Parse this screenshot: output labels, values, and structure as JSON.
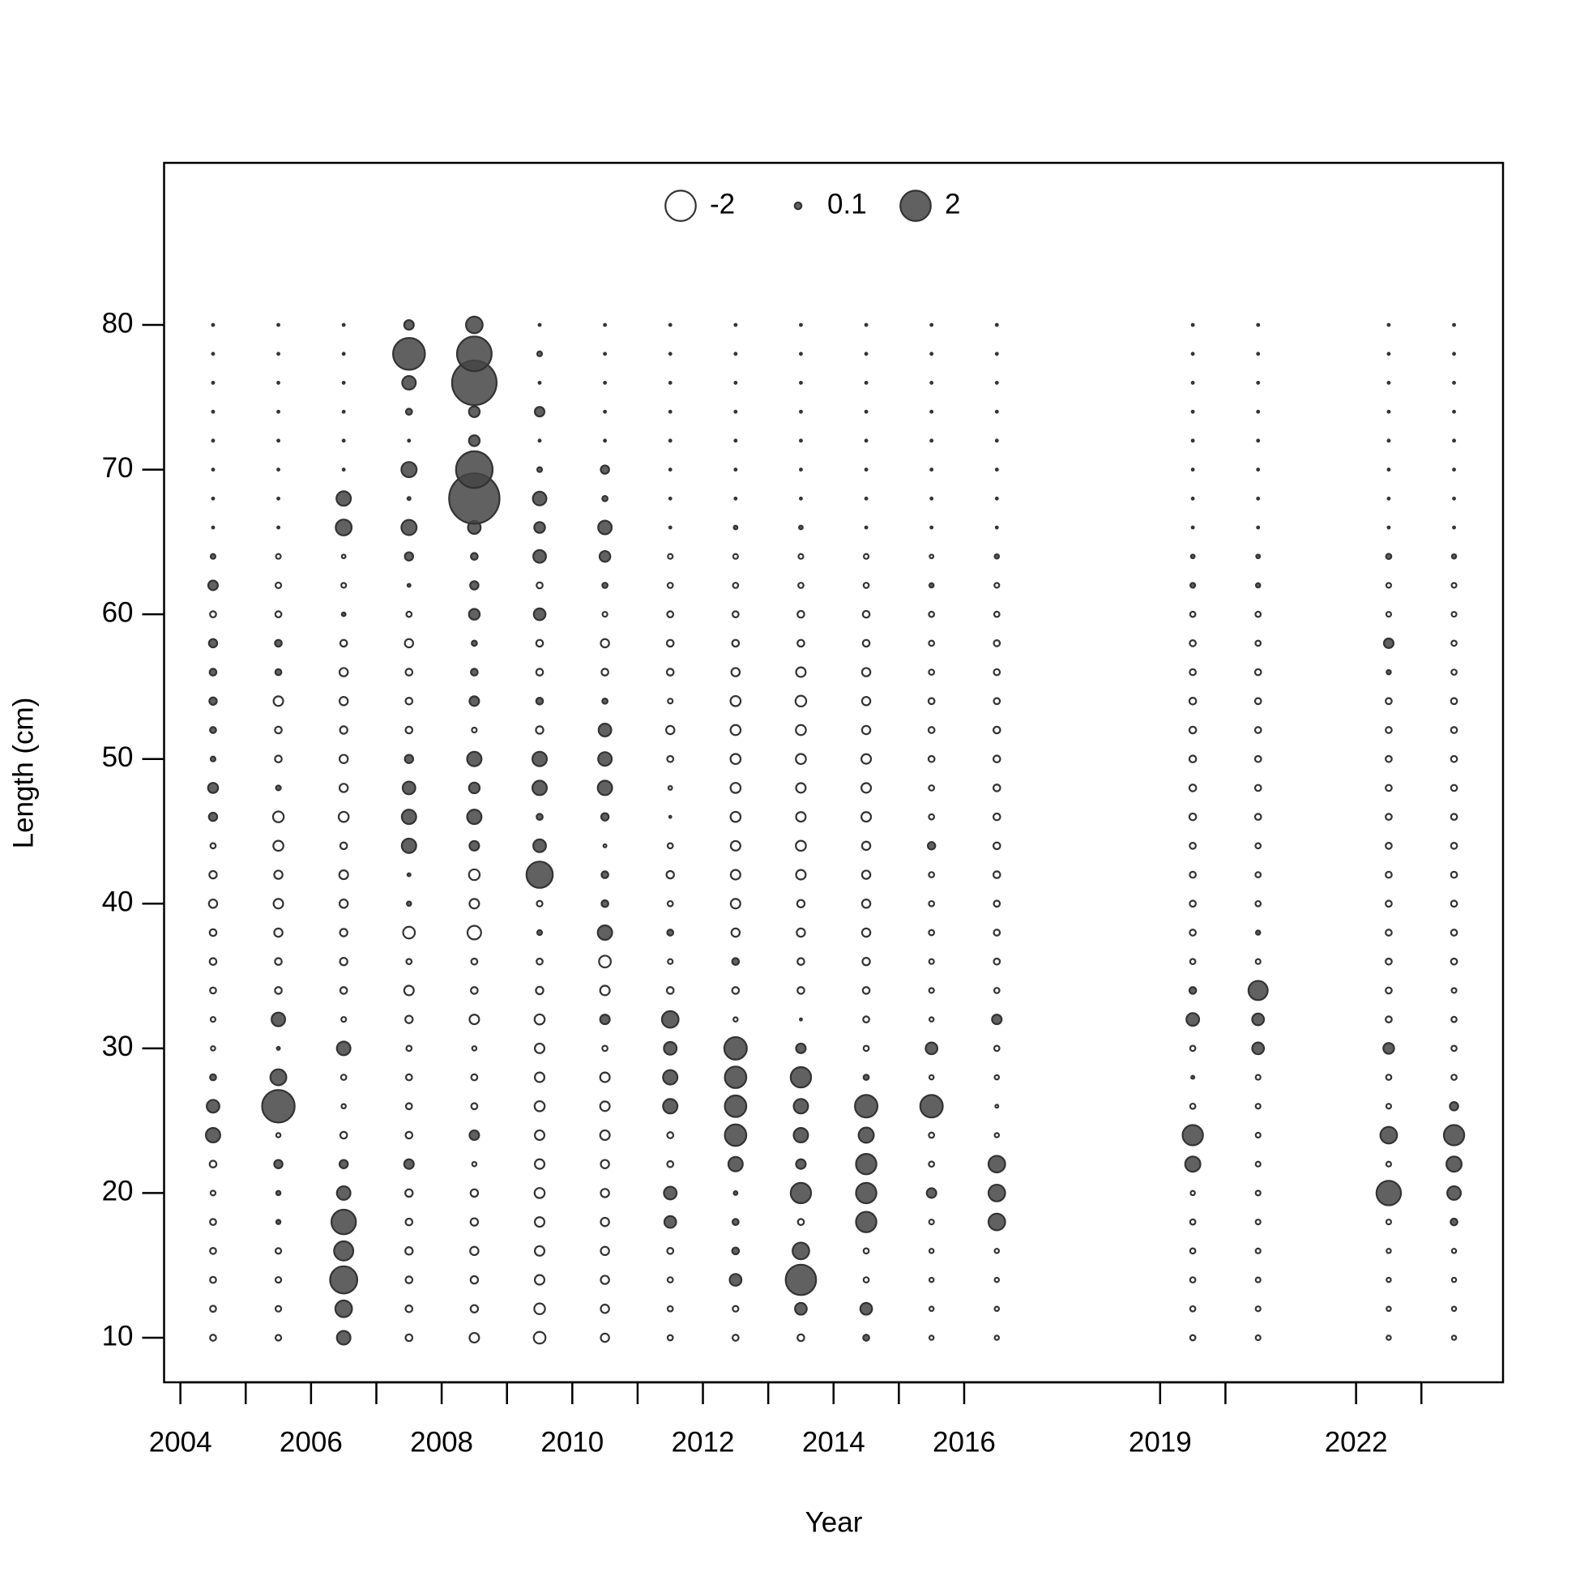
{
  "chart_data": {
    "type": "bubble",
    "xlabel": "Year",
    "ylabel": "Length (cm)",
    "xlim": [
      2003.75,
      2024.25
    ],
    "ylim": [
      6.92,
      91.2
    ],
    "xticks": [
      2004,
      2006,
      2008,
      2010,
      2012,
      2014,
      2016,
      2019,
      2022
    ],
    "xminorticks": [
      2005,
      2007,
      2009,
      2011,
      2013,
      2015,
      2020,
      2023
    ],
    "yticks": [
      10,
      20,
      30,
      40,
      50,
      60,
      70,
      80
    ],
    "colors": {
      "positive": "#454545",
      "negative": "#ffffff",
      "edge": "#333333"
    },
    "legend": {
      "values": [
        -2,
        0.1,
        2
      ]
    },
    "x": [
      2004.5,
      2005.5,
      2006.5,
      2007.5,
      2008.5,
      2009.5,
      2010.5,
      2011.5,
      2012.5,
      2013.5,
      2014.5,
      2015.5,
      2016.5,
      2019.5,
      2020.5,
      2022.5,
      2023.5
    ],
    "y": [
      10,
      12,
      14,
      16,
      18,
      20,
      22,
      24,
      26,
      28,
      30,
      32,
      34,
      36,
      38,
      40,
      42,
      44,
      46,
      48,
      50,
      52,
      54,
      56,
      58,
      60,
      62,
      64,
      66,
      68,
      70,
      72,
      74,
      76,
      78,
      80
    ],
    "values": [
      [
        -0.08,
        -0.08,
        -0.08,
        -0.08,
        -0.08,
        -0.05,
        -0.1,
        0.45,
        0.35,
        0.08,
        -0.04,
        -0.05,
        -0.08,
        -0.1,
        -0.1,
        -0.15,
        -0.12,
        -0.06,
        0.15,
        0.22,
        0.05,
        0.08,
        0.12,
        0.1,
        0.15,
        -0.08,
        0.2,
        0.05,
        0.01,
        0.01,
        0.01,
        0.01,
        0.01,
        0.01,
        0.01,
        0.01
      ],
      [
        -0.07,
        -0.07,
        -0.07,
        -0.07,
        0.04,
        0.04,
        0.15,
        -0.04,
        2.3,
        0.55,
        0.02,
        0.4,
        -0.1,
        -0.1,
        -0.15,
        -0.2,
        -0.15,
        -0.22,
        -0.25,
        0.05,
        -0.1,
        -0.1,
        -0.2,
        0.08,
        0.1,
        -0.08,
        -0.07,
        -0.05,
        0.01,
        0.01,
        0.01,
        0.01,
        0.01,
        0.01,
        0.01,
        0.01
      ],
      [
        0.4,
        0.6,
        1.6,
        0.8,
        1.3,
        0.4,
        0.15,
        -0.1,
        -0.04,
        -0.06,
        0.4,
        -0.05,
        -0.1,
        -0.12,
        -0.12,
        -0.15,
        -0.17,
        -0.1,
        -0.22,
        -0.15,
        -0.15,
        -0.12,
        -0.15,
        -0.15,
        -0.1,
        0.03,
        -0.05,
        -0.03,
        0.55,
        0.45,
        0.01,
        0.01,
        0.01,
        0.01,
        0.01,
        0.01
      ],
      [
        -0.1,
        -0.1,
        -0.1,
        -0.12,
        -0.1,
        -0.12,
        0.2,
        -0.1,
        -0.08,
        -0.08,
        -0.06,
        -0.12,
        -0.2,
        -0.06,
        -0.3,
        0.04,
        0.02,
        0.45,
        0.45,
        0.35,
        0.15,
        -0.1,
        -0.1,
        -0.1,
        -0.15,
        -0.06,
        0.02,
        0.15,
        0.5,
        0.02,
        0.5,
        0.01,
        0.08,
        0.4,
        2.2,
        0.2
      ],
      [
        -0.2,
        -0.12,
        -0.12,
        -0.15,
        -0.12,
        -0.12,
        -0.04,
        0.2,
        -0.08,
        -0.08,
        -0.04,
        -0.2,
        -0.1,
        -0.08,
        -0.4,
        -0.2,
        -0.25,
        0.2,
        0.45,
        0.25,
        0.45,
        -0.05,
        0.2,
        0.1,
        0.06,
        0.25,
        0.15,
        0.1,
        0.35,
        5.5,
        2.9,
        0.25,
        0.25,
        4.3,
        2.6,
        0.6
      ],
      [
        -0.3,
        -0.25,
        -0.2,
        -0.2,
        -0.2,
        -0.22,
        -0.2,
        -0.2,
        -0.22,
        -0.2,
        -0.2,
        -0.22,
        -0.12,
        -0.08,
        0.05,
        -0.07,
        1.5,
        0.35,
        0.08,
        0.45,
        0.45,
        -0.12,
        0.1,
        -0.1,
        -0.1,
        0.3,
        -0.08,
        0.35,
        0.25,
        0.4,
        0.05,
        0.01,
        0.2,
        0.01,
        0.05,
        0.01
      ],
      [
        -0.15,
        -0.15,
        -0.15,
        -0.15,
        -0.15,
        -0.15,
        -0.15,
        -0.2,
        -0.2,
        -0.2,
        -0.06,
        0.2,
        -0.2,
        -0.3,
        0.45,
        0.1,
        0.1,
        -0.02,
        0.12,
        0.45,
        0.4,
        0.35,
        0.06,
        -0.1,
        -0.15,
        -0.05,
        0.06,
        0.25,
        0.4,
        0.06,
        0.15,
        0.01,
        0.01,
        0.01,
        0.01,
        0.01
      ],
      [
        -0.06,
        -0.06,
        -0.06,
        -0.08,
        0.3,
        0.35,
        -0.08,
        -0.08,
        0.45,
        0.45,
        0.35,
        0.6,
        -0.1,
        -0.05,
        0.08,
        -0.06,
        -0.12,
        -0.06,
        -0.01,
        -0.03,
        -0.08,
        -0.15,
        -0.05,
        -0.1,
        -0.1,
        -0.08,
        -0.06,
        -0.05,
        0.01,
        0.01,
        0.01,
        0.01,
        0.01,
        0.01,
        0.01,
        0.01
      ],
      [
        -0.08,
        -0.07,
        0.3,
        0.1,
        0.08,
        0.03,
        0.45,
        1.0,
        1.0,
        1.0,
        1.1,
        -0.04,
        -0.1,
        0.1,
        -0.15,
        -0.2,
        -0.2,
        -0.2,
        -0.22,
        -0.22,
        -0.22,
        -0.22,
        -0.22,
        -0.15,
        -0.1,
        -0.08,
        -0.06,
        -0.05,
        0.03,
        0.01,
        0.01,
        0.01,
        0.01,
        0.01,
        0.01,
        0.01
      ],
      [
        -0.1,
        0.3,
        2.0,
        0.6,
        -0.08,
        0.9,
        0.2,
        0.45,
        0.45,
        0.9,
        0.2,
        -0.01,
        -0.1,
        -0.1,
        -0.15,
        -0.12,
        -0.2,
        -0.22,
        -0.2,
        -0.2,
        -0.22,
        -0.22,
        -0.25,
        -0.2,
        -0.1,
        -0.1,
        -0.06,
        -0.05,
        0.03,
        0.01,
        0.01,
        0.01,
        0.01,
        0.01,
        0.01,
        0.01
      ],
      [
        0.08,
        0.3,
        -0.06,
        -0.06,
        0.9,
        0.9,
        0.9,
        0.5,
        1.1,
        0.06,
        -0.06,
        -0.08,
        -0.1,
        -0.12,
        -0.15,
        -0.15,
        -0.15,
        -0.15,
        -0.2,
        -0.2,
        -0.2,
        -0.15,
        -0.15,
        -0.15,
        -0.1,
        -0.1,
        -0.06,
        -0.05,
        0.01,
        0.01,
        0.01,
        0.01,
        0.01,
        0.01,
        0.01,
        0.01
      ],
      [
        -0.04,
        -0.04,
        -0.04,
        -0.04,
        -0.05,
        0.2,
        -0.06,
        -0.06,
        1.1,
        -0.04,
        0.3,
        -0.04,
        -0.05,
        -0.05,
        -0.06,
        -0.06,
        -0.06,
        0.12,
        -0.06,
        -0.06,
        -0.08,
        -0.08,
        -0.08,
        -0.06,
        -0.06,
        -0.06,
        0.04,
        -0.03,
        0.01,
        0.01,
        0.01,
        0.01,
        0.01,
        0.01,
        0.01,
        0.01
      ],
      [
        -0.04,
        -0.04,
        -0.04,
        -0.04,
        0.6,
        0.6,
        0.6,
        -0.04,
        -0.02,
        -0.04,
        -0.06,
        0.2,
        -0.06,
        -0.08,
        -0.08,
        -0.08,
        -0.1,
        -0.1,
        -0.1,
        -0.1,
        -0.1,
        -0.1,
        -0.08,
        -0.08,
        -0.08,
        -0.06,
        -0.05,
        0.04,
        0.01,
        0.01,
        0.01,
        0.01,
        0.01,
        0.01,
        0.01,
        0.01
      ],
      [
        -0.06,
        -0.06,
        -0.06,
        -0.06,
        -0.06,
        -0.04,
        0.5,
        0.9,
        -0.06,
        0.02,
        -0.06,
        0.35,
        0.1,
        -0.06,
        -0.08,
        -0.08,
        -0.08,
        -0.08,
        -0.1,
        -0.1,
        -0.1,
        -0.1,
        -0.1,
        -0.08,
        -0.08,
        -0.06,
        0.05,
        0.03,
        0.01,
        0.01,
        0.01,
        0.01,
        0.01,
        0.01,
        0.01,
        0.01
      ],
      [
        -0.05,
        -0.05,
        -0.05,
        -0.05,
        -0.05,
        -0.05,
        -0.05,
        -0.05,
        -0.05,
        -0.05,
        0.3,
        0.3,
        0.8,
        -0.05,
        0.04,
        -0.06,
        -0.06,
        -0.06,
        -0.08,
        -0.08,
        -0.08,
        -0.08,
        -0.08,
        -0.08,
        -0.06,
        -0.06,
        0.04,
        0.03,
        0.01,
        0.01,
        0.01,
        0.01,
        0.01,
        0.01,
        0.01,
        0.01
      ],
      [
        -0.04,
        -0.04,
        -0.04,
        -0.04,
        -0.05,
        1.3,
        -0.05,
        0.6,
        -0.05,
        -0.06,
        0.25,
        -0.08,
        -0.08,
        -0.08,
        -0.08,
        -0.08,
        -0.08,
        -0.08,
        -0.08,
        -0.08,
        -0.08,
        -0.08,
        -0.08,
        0.04,
        0.2,
        -0.05,
        -0.05,
        0.06,
        0.01,
        0.01,
        0.01,
        0.01,
        0.01,
        0.01,
        0.01,
        0.01
      ],
      [
        -0.04,
        -0.04,
        -0.04,
        -0.04,
        0.1,
        0.4,
        0.5,
        0.9,
        0.15,
        -0.06,
        -0.06,
        -0.06,
        -0.05,
        -0.08,
        -0.08,
        -0.08,
        -0.08,
        -0.08,
        -0.08,
        -0.08,
        -0.08,
        -0.08,
        -0.08,
        -0.06,
        -0.06,
        -0.05,
        -0.05,
        0.04,
        0.01,
        0.01,
        0.01,
        0.01,
        0.01,
        0.01,
        0.01,
        0.01
      ]
    ]
  }
}
